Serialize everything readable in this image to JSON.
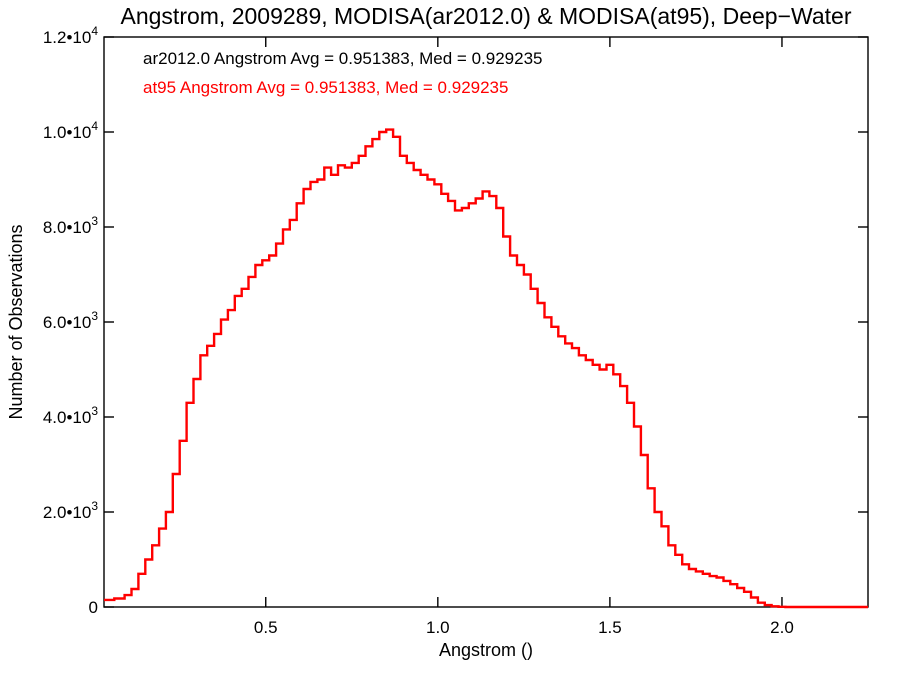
{
  "chart_data": {
    "type": "line",
    "title": "Angstrom, 2009289, MODISA(ar2012.0) & MODISA(at95), Deep−Water",
    "xlabel": "Angstrom ()",
    "ylabel": "Number of Observations",
    "xlim": [
      0.03,
      2.25
    ],
    "ylim": [
      0,
      12000
    ],
    "grid": false,
    "x_ticks": [
      {
        "value": 0.5,
        "label": "0.5"
      },
      {
        "value": 1.0,
        "label": "1.0"
      },
      {
        "value": 1.5,
        "label": "1.5"
      },
      {
        "value": 2.0,
        "label": "2.0"
      }
    ],
    "y_ticks": [
      {
        "value": 0,
        "mantissa": "0",
        "exp": ""
      },
      {
        "value": 2000,
        "mantissa": "2.0•10",
        "exp": "3"
      },
      {
        "value": 4000,
        "mantissa": "4.0•10",
        "exp": "3"
      },
      {
        "value": 6000,
        "mantissa": "6.0•10",
        "exp": "3"
      },
      {
        "value": 8000,
        "mantissa": "8.0•10",
        "exp": "3"
      },
      {
        "value": 10000,
        "mantissa": "1.0•10",
        "exp": "4"
      },
      {
        "value": 12000,
        "mantissa": "1.2•10",
        "exp": "4"
      }
    ],
    "annotations": [
      {
        "text": "ar2012.0 Angstrom Avg = 0.951383, Med = 0.929235",
        "color": "#000000"
      },
      {
        "text": "at95 Angstrom Avg = 0.951383, Med = 0.929235",
        "color": "#ff0000"
      }
    ],
    "series": [
      {
        "color": "#ff0000",
        "step": true,
        "x": [
          0.03,
          0.06,
          0.09,
          0.11,
          0.13,
          0.15,
          0.17,
          0.19,
          0.21,
          0.23,
          0.25,
          0.27,
          0.29,
          0.31,
          0.33,
          0.35,
          0.37,
          0.39,
          0.41,
          0.43,
          0.45,
          0.47,
          0.49,
          0.51,
          0.53,
          0.55,
          0.57,
          0.59,
          0.61,
          0.63,
          0.65,
          0.67,
          0.69,
          0.71,
          0.73,
          0.75,
          0.77,
          0.79,
          0.81,
          0.83,
          0.85,
          0.87,
          0.89,
          0.91,
          0.93,
          0.95,
          0.97,
          0.99,
          1.01,
          1.03,
          1.05,
          1.07,
          1.09,
          1.11,
          1.13,
          1.15,
          1.17,
          1.19,
          1.21,
          1.23,
          1.25,
          1.27,
          1.29,
          1.31,
          1.33,
          1.35,
          1.37,
          1.39,
          1.41,
          1.43,
          1.45,
          1.47,
          1.49,
          1.51,
          1.53,
          1.55,
          1.57,
          1.59,
          1.61,
          1.63,
          1.65,
          1.67,
          1.69,
          1.71,
          1.73,
          1.75,
          1.77,
          1.79,
          1.81,
          1.83,
          1.85,
          1.87,
          1.89,
          1.91,
          1.93,
          1.95,
          1.97,
          1.99,
          2.01,
          2.03,
          2.05,
          2.07,
          2.09,
          2.11,
          2.13,
          2.15,
          2.17,
          2.19,
          2.25
        ],
        "y": [
          150,
          180,
          250,
          380,
          700,
          1000,
          1300,
          1650,
          2000,
          2800,
          3500,
          4300,
          4800,
          5300,
          5500,
          5750,
          6050,
          6250,
          6550,
          6700,
          6950,
          7200,
          7300,
          7400,
          7650,
          7950,
          8150,
          8500,
          8800,
          8950,
          9000,
          9250,
          9100,
          9300,
          9250,
          9350,
          9500,
          9700,
          9850,
          10000,
          10050,
          9900,
          9500,
          9350,
          9200,
          9100,
          9000,
          8900,
          8700,
          8550,
          8350,
          8400,
          8500,
          8600,
          8750,
          8650,
          8400,
          7800,
          7400,
          7200,
          7000,
          6700,
          6400,
          6100,
          5900,
          5700,
          5550,
          5450,
          5300,
          5200,
          5100,
          5000,
          5100,
          4900,
          4650,
          4300,
          3800,
          3200,
          2500,
          2000,
          1700,
          1300,
          1100,
          900,
          800,
          750,
          700,
          650,
          620,
          550,
          480,
          400,
          320,
          200,
          90,
          40,
          15,
          5,
          0,
          0,
          0,
          0,
          0,
          0,
          0,
          0,
          0,
          0,
          0
        ],
        "values_note": ""
      }
    ]
  }
}
